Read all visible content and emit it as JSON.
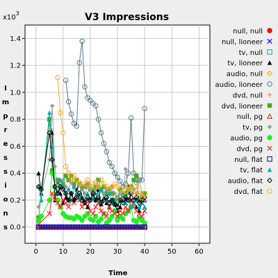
{
  "chart_data": {
    "type": "scatter",
    "title": "V3 Impressions",
    "xlabel": "Time",
    "ylabel": "Impressions",
    "y_multiplier_label": "x10",
    "y_multiplier_exp": "3",
    "xlim": [
      -4,
      64
    ],
    "ylim": [
      -0.12,
      1.5
    ],
    "xticks": [
      0,
      10,
      20,
      30,
      40,
      50,
      60
    ],
    "yticks": [
      0.0,
      0.2,
      0.4,
      0.6,
      0.8,
      1.0,
      1.2,
      1.4
    ],
    "grid": true,
    "legend_position": "right",
    "x": [
      1,
      2,
      3,
      4,
      5,
      6,
      7,
      8,
      9,
      10,
      11,
      12,
      13,
      14,
      15,
      16,
      17,
      18,
      19,
      20,
      21,
      22,
      23,
      24,
      25,
      26,
      27,
      28,
      29,
      30,
      31,
      32,
      33,
      34,
      35,
      36,
      37,
      38,
      39,
      40
    ],
    "series": [
      {
        "name": "null, null",
        "marker": "circle-filled",
        "color": "#ff0000",
        "values": [
          0,
          0,
          0,
          0,
          0,
          0,
          0,
          0,
          0,
          0,
          0,
          0,
          0,
          0,
          0,
          0,
          0,
          0,
          0,
          0,
          0,
          0,
          0,
          0,
          0,
          0,
          0,
          0,
          0,
          0,
          0,
          0,
          0,
          0,
          0,
          0,
          0,
          0,
          0,
          0
        ]
      },
      {
        "name": "null, lioneer",
        "marker": "x",
        "color": "#0000ff",
        "values": [
          0,
          0,
          0,
          0,
          0,
          0,
          0,
          0,
          0,
          0,
          0,
          0,
          0,
          0,
          0,
          0,
          0,
          0,
          0,
          0,
          0,
          0,
          0,
          0,
          0,
          0,
          0,
          0,
          0,
          0,
          0,
          0,
          0,
          0,
          0,
          0,
          0,
          0,
          0,
          0
        ]
      },
      {
        "name": "tv, null",
        "marker": "square-open",
        "color": "#00aaaa",
        "values": [
          0,
          0,
          0,
          0,
          0,
          0,
          0,
          0,
          0,
          0,
          0,
          0,
          0,
          0,
          0,
          0,
          0,
          0,
          0,
          0,
          0,
          0,
          0,
          0,
          0,
          0,
          0,
          0,
          0,
          0,
          0,
          0,
          0,
          0,
          0,
          0,
          0,
          0,
          0,
          0
        ]
      },
      {
        "name": "tv, lioneer",
        "marker": "triangle-filled",
        "color": "#000000",
        "values": [
          0.4,
          0.25,
          null,
          null,
          0.8,
          0.7,
          0.2,
          0.35,
          0.25,
          0.18,
          0.22,
          0.2,
          0.25,
          0.2,
          0.28,
          0.32,
          0.22,
          0.18,
          0.15,
          0.2,
          0.25,
          0.2,
          0.28,
          0.17,
          0.22,
          0.18,
          0.15,
          0.2,
          0.17,
          0.12,
          0.15,
          0.25,
          0.2,
          0.3,
          0.2,
          0.18,
          0.15,
          0.12,
          0.18,
          0.2
        ]
      },
      {
        "name": "audio, null",
        "marker": "diamond-open",
        "color": "#ff9900",
        "values": [
          0,
          0,
          0,
          0,
          0,
          0,
          0,
          0,
          0,
          0,
          0,
          0,
          0,
          0,
          0,
          0,
          0,
          0,
          0,
          0,
          0,
          0,
          0,
          0,
          0,
          0,
          0,
          0,
          0,
          0,
          0,
          0,
          0,
          0,
          0,
          0,
          0,
          0,
          0,
          0
        ]
      },
      {
        "name": "audio, lioneer",
        "marker": "circle-open",
        "color": "#557788",
        "values": [
          null,
          null,
          null,
          null,
          null,
          null,
          null,
          null,
          null,
          null,
          1.09,
          0.93,
          0.84,
          0.77,
          0.75,
          1.22,
          1.38,
          1.04,
          0.96,
          0.94,
          0.92,
          0.9,
          0.8,
          0.7,
          0.62,
          0.56,
          0.48,
          0.45,
          0.4,
          0.37,
          0.34,
          0.3,
          0.32,
          0.4,
          0.81,
          0.4,
          0.33,
          0.35,
          0.35,
          0.88
        ]
      },
      {
        "name": "dvd, null",
        "marker": "plus",
        "color": "#ff8844",
        "values": [
          0,
          0,
          0,
          0,
          0,
          0,
          0,
          0,
          0,
          0,
          0,
          0,
          0,
          0,
          0,
          0,
          0,
          0,
          0,
          0,
          0,
          0,
          0,
          0,
          0,
          0,
          0,
          0,
          0,
          0,
          0,
          0,
          0,
          0,
          0,
          0,
          0,
          0,
          0,
          0
        ]
      },
      {
        "name": "dvd, lioneer",
        "marker": "square-filled",
        "color": "#44aa22",
        "values": [
          0.07,
          null,
          null,
          null,
          0.8,
          0.42,
          0.3,
          0.35,
          0.3,
          0.32,
          0.38,
          0.35,
          0.38,
          0.32,
          0.35,
          0.32,
          0.3,
          0.3,
          0.32,
          0.28,
          0.27,
          0.3,
          0.35,
          0.28,
          0.3,
          0.25,
          0.28,
          0.25,
          0.2,
          0.22,
          0.28,
          0.25,
          0.25,
          0.28,
          0.3,
          0.35,
          0.38,
          0.2,
          0.22,
          0.25
        ]
      },
      {
        "name": "null, pg",
        "marker": "triangle-open",
        "color": "#aa3300",
        "values": [
          0,
          0,
          0,
          0,
          0,
          0,
          0,
          0,
          0,
          0,
          0,
          0,
          0,
          0,
          0,
          0,
          0,
          0,
          0,
          0,
          0,
          0,
          0,
          0,
          0,
          0,
          0,
          0,
          0,
          0,
          0,
          0,
          0,
          0,
          0,
          0,
          0,
          0,
          0,
          0
        ]
      },
      {
        "name": "tv, pg",
        "marker": "diamond-filled",
        "color": "#999999",
        "values": [
          0.15,
          null,
          null,
          null,
          0.5,
          0.9,
          0.45,
          0.25,
          0.3,
          0.35,
          0.3,
          0.28,
          0.33,
          0.3,
          0.25,
          0.32,
          0.28,
          0.25,
          0.3,
          0.28,
          0.25,
          0.28,
          0.3,
          0.27,
          0.25,
          0.28,
          0.25,
          0.3,
          0.25,
          0.22,
          0.25,
          0.2,
          0.43,
          0.25,
          0.3,
          0.28,
          0.25,
          0.35,
          0.25,
          0.2
        ]
      },
      {
        "name": "audio, pg",
        "marker": "circle-filled",
        "color": "#22ee22",
        "values": [
          0.05,
          0.08,
          null,
          null,
          0.2,
          0.4,
          0.3,
          0.2,
          0.15,
          0.1,
          0.08,
          0.07,
          0.07,
          0.06,
          0.08,
          0.07,
          0.05,
          0.08,
          0.1,
          0.06,
          0.05,
          0.08,
          0.04,
          0.06,
          0.1,
          0.03,
          0.05,
          0.08,
          0.12,
          0.05,
          0.08,
          0.06,
          0.1,
          0.12,
          0.15,
          0.05,
          0.04,
          0.07,
          0.05,
          0.03
        ]
      },
      {
        "name": "dvd, pg",
        "marker": "x",
        "color": "#ff2222",
        "values": [
          0.02,
          null,
          null,
          null,
          0.1,
          0.25,
          0.2,
          0.18,
          0.15,
          0.2,
          0.18,
          0.15,
          0.2,
          0.18,
          0.22,
          0.2,
          0.15,
          0.18,
          0.2,
          0.12,
          0.1,
          0.15,
          0.18,
          0.12,
          0.1,
          0.08,
          0.15,
          0.12,
          0.1,
          0.08,
          0.12,
          0.1,
          0.15,
          0.12,
          0.2,
          0.15,
          0.12,
          0.1,
          0.08,
          0.12
        ]
      },
      {
        "name": "null, flat",
        "marker": "square-open",
        "color": "#0000cc",
        "values": [
          0,
          0,
          0,
          0,
          0,
          0,
          0,
          0,
          0,
          0,
          0,
          0,
          0,
          0,
          0,
          0,
          0,
          0,
          0,
          0,
          0,
          0,
          0,
          0,
          0,
          0,
          0,
          0,
          0,
          0,
          0,
          0,
          0,
          0,
          0,
          0,
          0,
          0,
          0,
          0
        ]
      },
      {
        "name": "tv, flat",
        "marker": "triangle-filled",
        "color": "#00aaaa",
        "values": [
          0.3,
          0.2,
          null,
          null,
          0.85,
          0.6,
          0.3,
          0.25,
          0.35,
          0.3,
          0.25,
          0.28,
          0.2,
          0.3,
          0.25,
          0.22,
          0.3,
          0.2,
          0.25,
          0.2,
          0.22,
          0.25,
          0.2,
          0.28,
          0.22,
          0.2,
          0.25,
          0.18,
          0.2,
          0.17,
          0.2,
          0.25,
          0.18,
          0.2,
          0.15,
          0.18,
          0.2,
          0.15,
          0.18,
          0.15
        ]
      },
      {
        "name": "audio, flat",
        "marker": "diamond-open",
        "color": "#000000",
        "values": [
          0.3,
          0.28,
          null,
          null,
          0.7,
          0.5,
          0.3,
          0.25,
          0.3,
          0.28,
          0.25,
          0.2,
          0.25,
          0.2,
          0.22,
          0.25,
          0.2,
          0.18,
          0.22,
          0.2,
          0.25,
          0.2,
          0.22,
          0.18,
          0.2,
          0.22,
          0.18,
          0.2,
          0.17,
          0.15,
          0.2,
          0.18,
          0.22,
          0.2,
          0.25,
          0.2,
          0.22,
          0.18,
          0.2,
          0.22
        ]
      },
      {
        "name": "dvd, flat",
        "marker": "circle-open",
        "color": "#ffaa22",
        "values": [
          null,
          null,
          null,
          null,
          null,
          null,
          null,
          1.11,
          0.85,
          0.7,
          0.45,
          0.4,
          0.35,
          0.38,
          0.35,
          0.33,
          0.3,
          0.32,
          0.35,
          0.3,
          0.32,
          0.33,
          0.3,
          0.35,
          0.32,
          0.3,
          0.28,
          0.3,
          0.32,
          0.3,
          0.28,
          0.25,
          0.27,
          0.3,
          0.28,
          0.25,
          0.3,
          0.25,
          0.22,
          0.25
        ]
      }
    ]
  }
}
